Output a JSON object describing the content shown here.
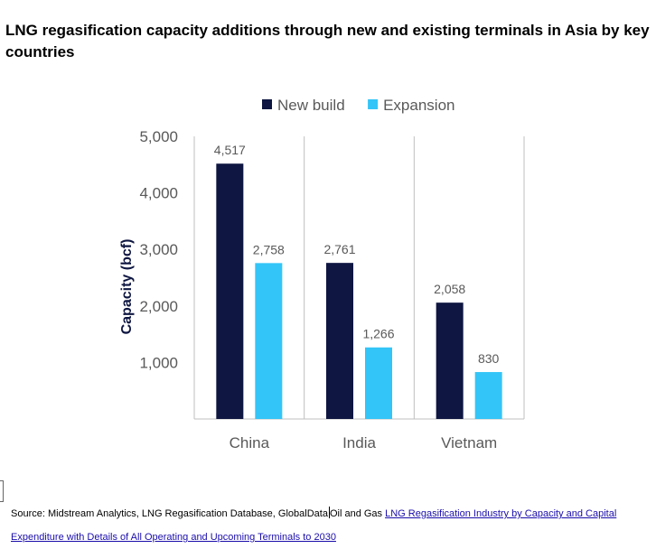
{
  "title": "LNG regasification capacity additions through new and existing terminals in Asia by key countries",
  "chart_data": {
    "type": "bar",
    "title": "LNG regasification capacity additions through new and existing terminals in Asia by key countries",
    "categories": [
      "China",
      "India",
      "Vietnam"
    ],
    "series": [
      {
        "name": "New build",
        "color": "#0e1641",
        "values": [
          4517,
          2761,
          2058
        ],
        "labels": [
          "4,517",
          "2,761",
          "2,058"
        ]
      },
      {
        "name": "Expansion",
        "color": "#33c5f7",
        "values": [
          2758,
          1266,
          830
        ],
        "labels": [
          "2,758",
          "1,266",
          "830"
        ]
      }
    ],
    "xlabel": "",
    "ylabel": "Capacity (bcf)",
    "ylim": [
      0,
      5000
    ],
    "yticks": [
      1000,
      2000,
      3000,
      4000,
      5000
    ],
    "ytick_labels": [
      "1,000",
      "2,000",
      "3,000",
      "4,000",
      "5,000"
    ],
    "legend": "top-center",
    "grid": false
  },
  "source": {
    "prefix": "Source: Midstream Analytics, LNG Regasification Database, GlobalData",
    "middle": "Oil and Gas ",
    "link_text": "LNG Regasification Industry by Capacity and Capital Expenditure with Details of All Operating and Upcoming Terminals to 2030"
  }
}
